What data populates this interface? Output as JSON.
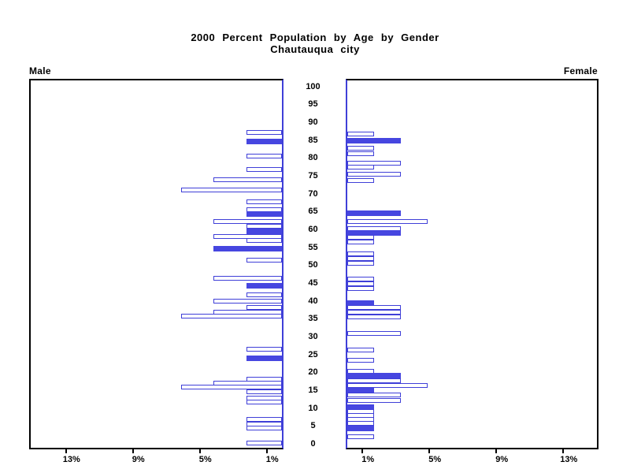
{
  "chart_data": {
    "type": "bar",
    "subtype": "population-pyramid",
    "title": "2000 Percent Population by Age by Gender",
    "subtitle": "Chautauqua city",
    "age_axis": {
      "min": 0,
      "max": 100,
      "tick_step": 5,
      "ticks": [
        0,
        5,
        10,
        15,
        20,
        25,
        30,
        35,
        40,
        45,
        50,
        55,
        60,
        65,
        70,
        75,
        80,
        85,
        90,
        95,
        100
      ]
    },
    "pct_axis": {
      "male_ticks": [
        {
          "value": 13,
          "label": "13%"
        },
        {
          "value": 9,
          "label": "9%"
        },
        {
          "value": 5,
          "label": "5%"
        },
        {
          "value": 1,
          "label": "1%"
        }
      ],
      "female_ticks": [
        {
          "value": 1,
          "label": "1%"
        },
        {
          "value": 5,
          "label": "5%"
        },
        {
          "value": 9,
          "label": "9%"
        },
        {
          "value": 13,
          "label": "13%"
        }
      ]
    },
    "colors": {
      "bar_fill": "#4646e0",
      "bar_outline": "#3f3fd8",
      "axis_line": "#3f3fd8",
      "frame": "#000000",
      "text": "#000000"
    },
    "legend_note": "filled bars = solid blue, unfilled bars = white with blue outline",
    "series": [
      {
        "name": "Male",
        "side": "left",
        "points": [
          {
            "age": 87.3,
            "pct": 2.1,
            "filled": false
          },
          {
            "age": 84.7,
            "pct": 2.1,
            "filled": true
          },
          {
            "age": 80.6,
            "pct": 2.1,
            "filled": false
          },
          {
            "age": 76.9,
            "pct": 2.1,
            "filled": false
          },
          {
            "age": 74.0,
            "pct": 4.1,
            "filled": false
          },
          {
            "age": 71.1,
            "pct": 6.0,
            "filled": false
          },
          {
            "age": 67.8,
            "pct": 2.1,
            "filled": false
          },
          {
            "age": 65.7,
            "pct": 2.1,
            "filled": false
          },
          {
            "age": 64.4,
            "pct": 2.1,
            "filled": true
          },
          {
            "age": 62.3,
            "pct": 4.1,
            "filled": false
          },
          {
            "age": 61.0,
            "pct": 2.1,
            "filled": false
          },
          {
            "age": 59.5,
            "pct": 2.1,
            "filled": true
          },
          {
            "age": 58.2,
            "pct": 4.1,
            "filled": false
          },
          {
            "age": 57.0,
            "pct": 2.1,
            "filled": false
          },
          {
            "age": 54.7,
            "pct": 4.1,
            "filled": true
          },
          {
            "age": 51.4,
            "pct": 2.1,
            "filled": false
          },
          {
            "age": 46.4,
            "pct": 4.1,
            "filled": false
          },
          {
            "age": 44.3,
            "pct": 2.1,
            "filled": true
          },
          {
            "age": 41.8,
            "pct": 2.1,
            "filled": false
          },
          {
            "age": 40.0,
            "pct": 4.1,
            "filled": false
          },
          {
            "age": 38.3,
            "pct": 2.1,
            "filled": false
          },
          {
            "age": 37.0,
            "pct": 4.1,
            "filled": false
          },
          {
            "age": 35.9,
            "pct": 6.0,
            "filled": false
          },
          {
            "age": 26.6,
            "pct": 2.1,
            "filled": false
          },
          {
            "age": 24.1,
            "pct": 2.1,
            "filled": true
          },
          {
            "age": 18.3,
            "pct": 2.1,
            "filled": false
          },
          {
            "age": 17.0,
            "pct": 4.1,
            "filled": false
          },
          {
            "age": 15.9,
            "pct": 6.0,
            "filled": false
          },
          {
            "age": 14.6,
            "pct": 2.1,
            "filled": false
          },
          {
            "age": 13.0,
            "pct": 2.1,
            "filled": false
          },
          {
            "age": 11.7,
            "pct": 2.1,
            "filled": false
          },
          {
            "age": 6.9,
            "pct": 2.1,
            "filled": false
          },
          {
            "age": 5.7,
            "pct": 2.1,
            "filled": false
          },
          {
            "age": 4.6,
            "pct": 2.1,
            "filled": false
          },
          {
            "age": 0.3,
            "pct": 2.1,
            "filled": false
          }
        ]
      },
      {
        "name": "Female",
        "side": "right",
        "points": [
          {
            "age": 86.7,
            "pct": 1.6,
            "filled": false
          },
          {
            "age": 84.8,
            "pct": 3.2,
            "filled": true
          },
          {
            "age": 82.7,
            "pct": 1.6,
            "filled": false
          },
          {
            "age": 81.3,
            "pct": 1.6,
            "filled": false
          },
          {
            "age": 78.6,
            "pct": 3.2,
            "filled": false
          },
          {
            "age": 77.5,
            "pct": 1.6,
            "filled": false
          },
          {
            "age": 75.5,
            "pct": 3.2,
            "filled": false
          },
          {
            "age": 73.7,
            "pct": 1.6,
            "filled": false
          },
          {
            "age": 64.5,
            "pct": 3.2,
            "filled": true
          },
          {
            "age": 62.4,
            "pct": 4.8,
            "filled": false
          },
          {
            "age": 60.4,
            "pct": 3.2,
            "filled": false
          },
          {
            "age": 59.2,
            "pct": 3.2,
            "filled": true
          },
          {
            "age": 57.9,
            "pct": 1.6,
            "filled": false
          },
          {
            "age": 56.6,
            "pct": 1.6,
            "filled": false
          },
          {
            "age": 53.2,
            "pct": 1.6,
            "filled": false
          },
          {
            "age": 51.9,
            "pct": 1.6,
            "filled": false
          },
          {
            "age": 50.5,
            "pct": 1.6,
            "filled": false
          },
          {
            "age": 46.1,
            "pct": 1.6,
            "filled": false
          },
          {
            "age": 44.8,
            "pct": 1.6,
            "filled": false
          },
          {
            "age": 43.5,
            "pct": 1.6,
            "filled": false
          },
          {
            "age": 39.5,
            "pct": 1.6,
            "filled": true
          },
          {
            "age": 38.2,
            "pct": 3.2,
            "filled": false
          },
          {
            "age": 37.0,
            "pct": 3.2,
            "filled": false
          },
          {
            "age": 35.7,
            "pct": 3.2,
            "filled": false
          },
          {
            "age": 31.0,
            "pct": 3.2,
            "filled": false
          },
          {
            "age": 26.3,
            "pct": 1.6,
            "filled": false
          },
          {
            "age": 23.4,
            "pct": 1.6,
            "filled": false
          },
          {
            "age": 20.5,
            "pct": 1.6,
            "filled": false
          },
          {
            "age": 19.1,
            "pct": 3.2,
            "filled": true
          },
          {
            "age": 17.7,
            "pct": 3.2,
            "filled": false
          },
          {
            "age": 16.4,
            "pct": 4.8,
            "filled": false
          },
          {
            "age": 15.0,
            "pct": 1.6,
            "filled": true
          },
          {
            "age": 13.7,
            "pct": 3.2,
            "filled": false
          },
          {
            "age": 12.2,
            "pct": 3.2,
            "filled": false
          },
          {
            "age": 10.4,
            "pct": 1.6,
            "filled": true
          },
          {
            "age": 9.2,
            "pct": 1.6,
            "filled": false
          },
          {
            "age": 8.1,
            "pct": 1.6,
            "filled": false
          },
          {
            "age": 7.0,
            "pct": 1.6,
            "filled": false
          },
          {
            "age": 5.9,
            "pct": 1.6,
            "filled": false
          },
          {
            "age": 4.4,
            "pct": 1.6,
            "filled": true
          },
          {
            "age": 2.2,
            "pct": 1.6,
            "filled": false
          }
        ]
      }
    ]
  }
}
